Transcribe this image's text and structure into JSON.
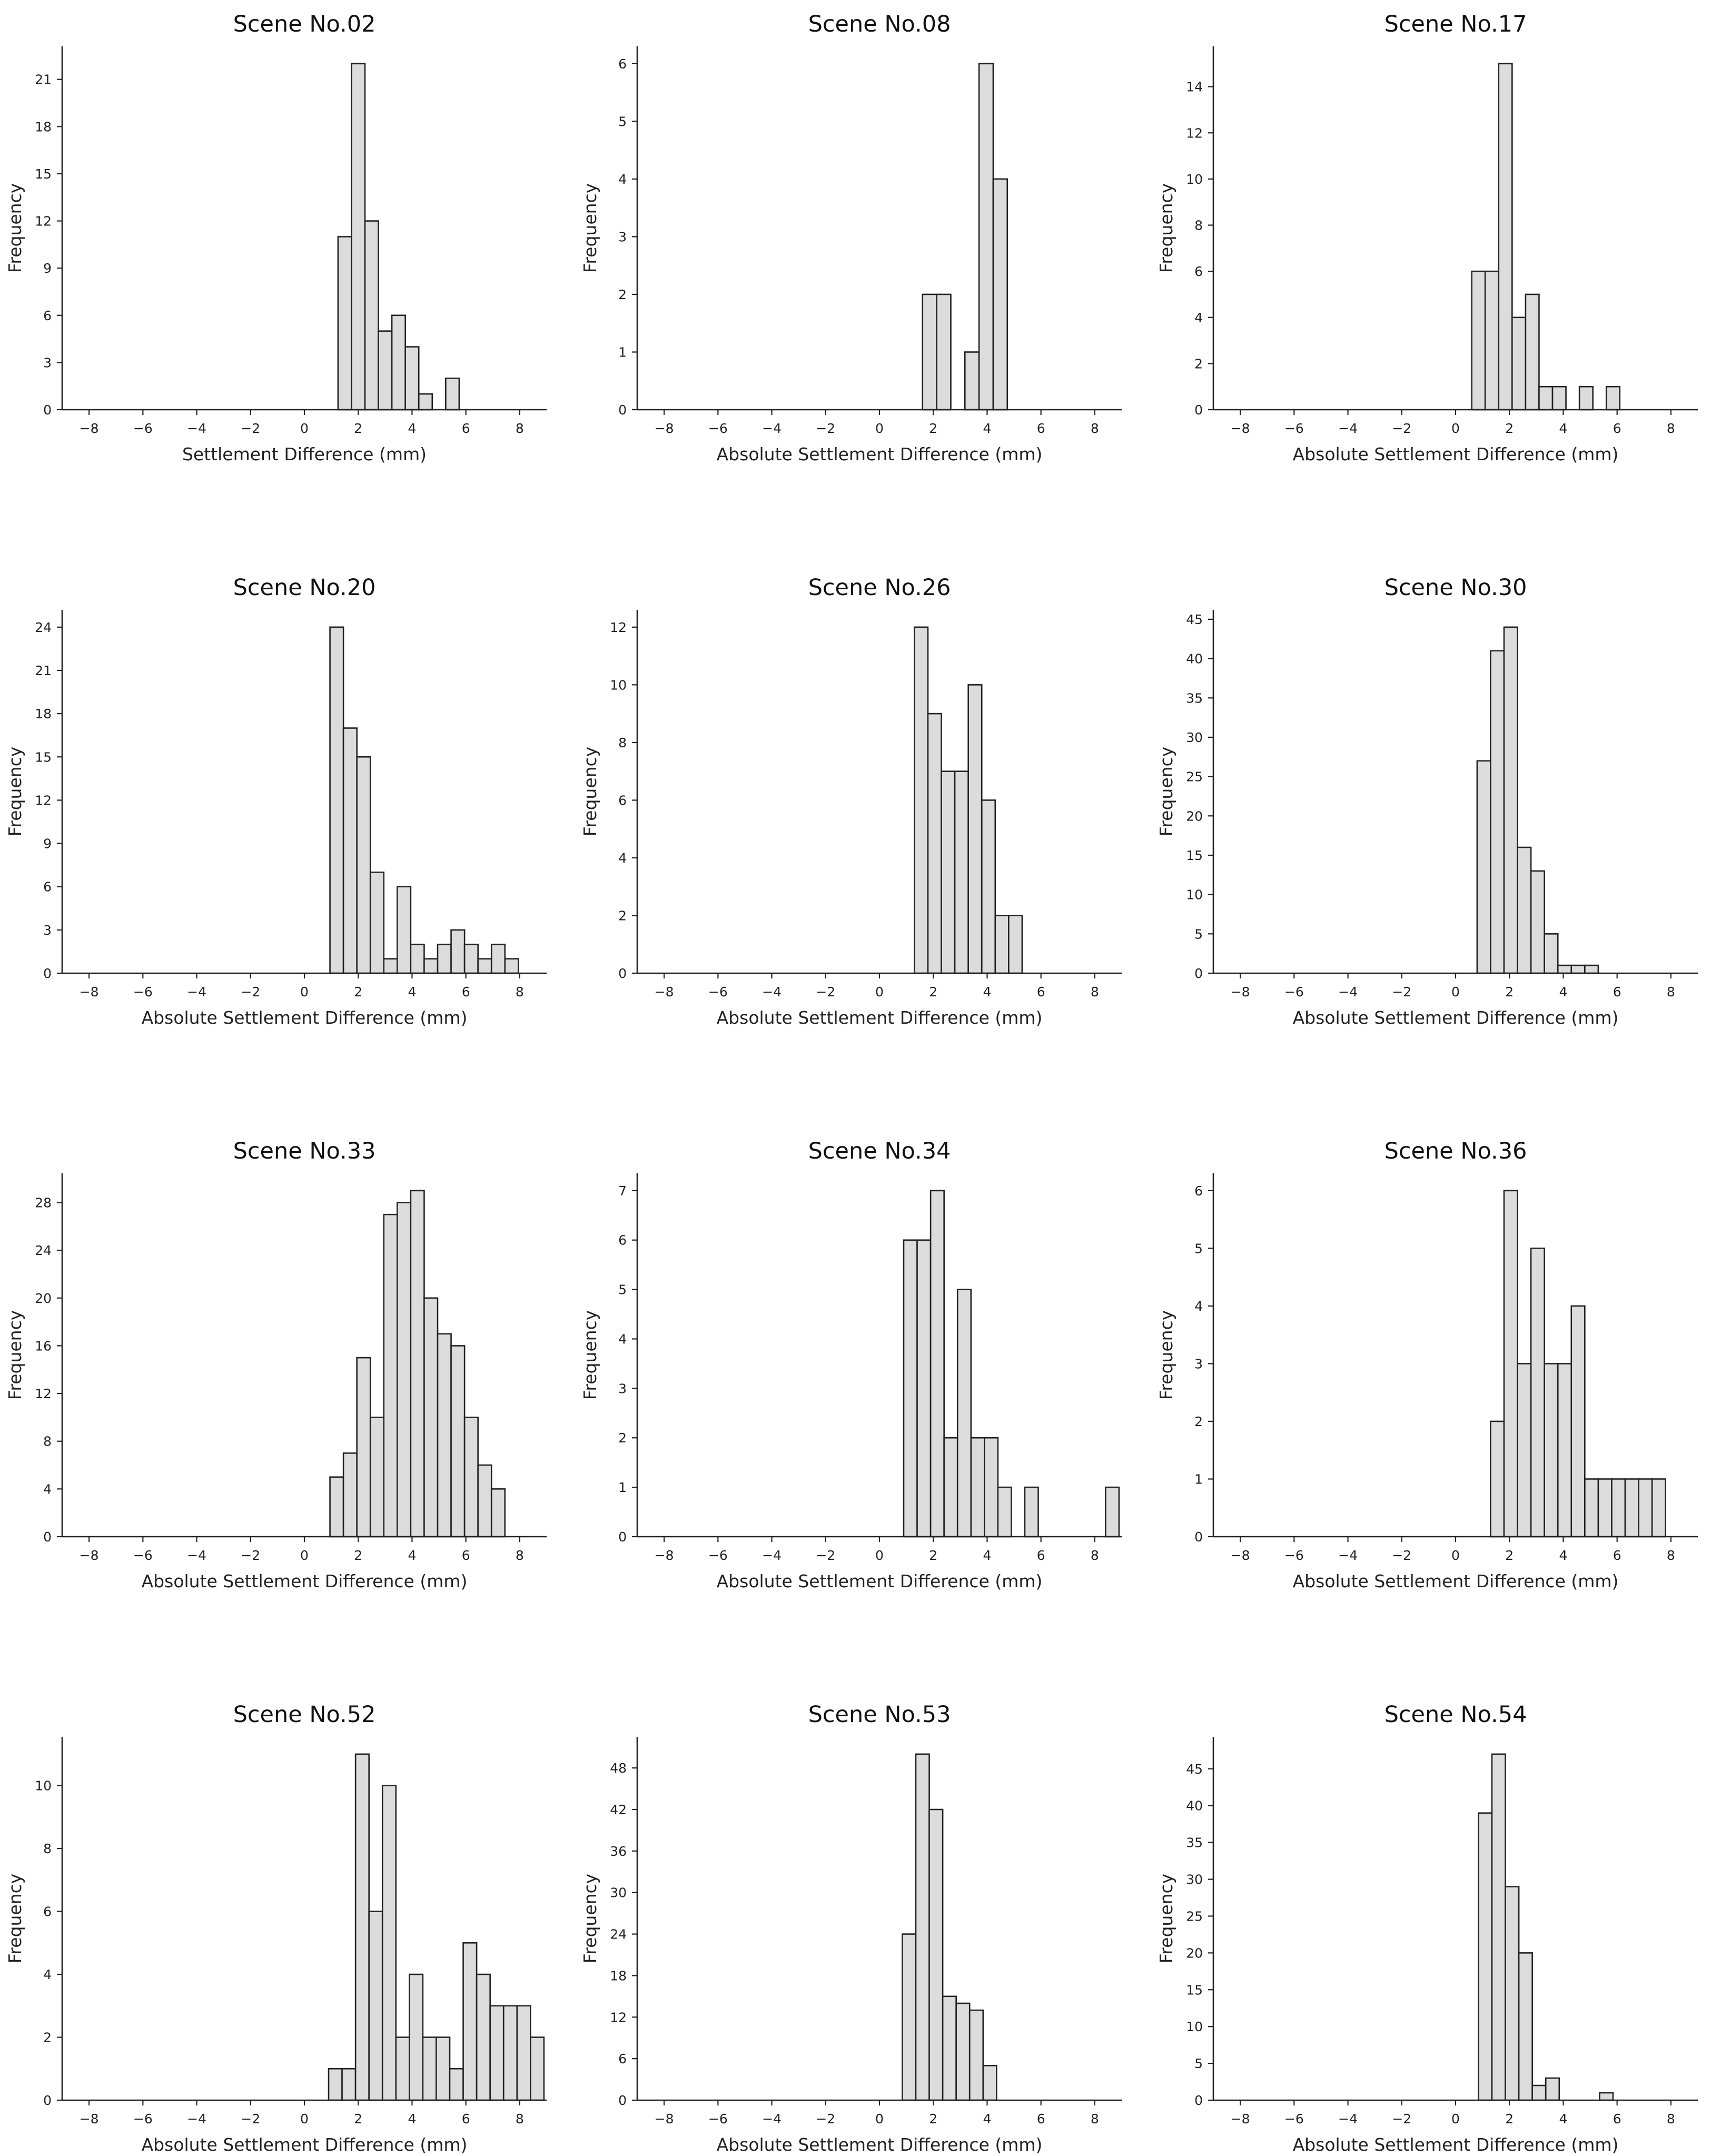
{
  "chart_data": [
    {
      "type": "bar",
      "title": "Scene No.02",
      "xlabel": "Settlement Difference (mm)",
      "ylabel": "Frequency",
      "xlim": [
        -9,
        9
      ],
      "ylim": [
        0,
        23.1
      ],
      "xticks": [
        -8,
        -6,
        -4,
        -2,
        0,
        2,
        4,
        6,
        8
      ],
      "yticks": [
        0,
        3,
        6,
        9,
        12,
        15,
        18,
        21
      ],
      "bin_start": 1.25,
      "bin_width": 0.5,
      "values": [
        11,
        22,
        12,
        5,
        6,
        4,
        1,
        0,
        2
      ],
      "grid": false
    },
    {
      "type": "bar",
      "title": "Scene No.08",
      "xlabel": "Absolute Settlement Difference (mm)",
      "ylabel": "Frequency",
      "xlim": [
        -9,
        9
      ],
      "ylim": [
        0,
        6.3
      ],
      "xticks": [
        -8,
        -6,
        -4,
        -2,
        0,
        2,
        4,
        6,
        8
      ],
      "yticks": [
        0,
        1,
        2,
        3,
        4,
        5,
        6
      ],
      "bin_start": 1.6,
      "bin_width": 0.525,
      "values": [
        2,
        2,
        0,
        1,
        6,
        4
      ],
      "grid": false
    },
    {
      "type": "bar",
      "title": "Scene No.17",
      "xlabel": "Absolute Settlement Difference (mm)",
      "ylabel": "Frequency",
      "xlim": [
        -9,
        9
      ],
      "ylim": [
        0,
        15.75
      ],
      "xticks": [
        -8,
        -6,
        -4,
        -2,
        0,
        2,
        4,
        6,
        8
      ],
      "yticks": [
        0,
        2,
        4,
        6,
        8,
        10,
        12,
        14
      ],
      "bin_start": 0.6,
      "bin_width": 0.5,
      "values": [
        6,
        6,
        15,
        4,
        5,
        1,
        1,
        0,
        1,
        0,
        1
      ],
      "grid": false
    },
    {
      "type": "bar",
      "title": "Scene No.20",
      "xlabel": "Absolute Settlement Difference (mm)",
      "ylabel": "Frequency",
      "xlim": [
        -9,
        9
      ],
      "ylim": [
        0,
        25.2
      ],
      "xticks": [
        -8,
        -6,
        -4,
        -2,
        0,
        2,
        4,
        6,
        8
      ],
      "yticks": [
        0,
        3,
        6,
        9,
        12,
        15,
        18,
        21,
        24
      ],
      "bin_start": 0.95,
      "bin_width": 0.5,
      "values": [
        24,
        17,
        15,
        7,
        1,
        6,
        2,
        1,
        2,
        3,
        2,
        1,
        2,
        1
      ],
      "grid": false
    },
    {
      "type": "bar",
      "title": "Scene No.26",
      "xlabel": "Absolute Settlement Difference (mm)",
      "ylabel": "Frequency",
      "xlim": [
        -9,
        9
      ],
      "ylim": [
        0,
        12.6
      ],
      "xticks": [
        -8,
        -6,
        -4,
        -2,
        0,
        2,
        4,
        6,
        8
      ],
      "yticks": [
        0,
        2,
        4,
        6,
        8,
        10,
        12
      ],
      "bin_start": 1.3,
      "bin_width": 0.5,
      "values": [
        12,
        9,
        7,
        7,
        10,
        6,
        2,
        2
      ],
      "grid": false
    },
    {
      "type": "bar",
      "title": "Scene No.30",
      "xlabel": "Absolute Settlement Difference (mm)",
      "ylabel": "Frequency",
      "xlim": [
        -9,
        9
      ],
      "ylim": [
        0,
        46.2
      ],
      "xticks": [
        -8,
        -6,
        -4,
        -2,
        0,
        2,
        4,
        6,
        8
      ],
      "yticks": [
        0,
        5,
        10,
        15,
        20,
        25,
        30,
        35,
        40,
        45
      ],
      "bin_start": 0.8,
      "bin_width": 0.5,
      "values": [
        27,
        41,
        44,
        16,
        13,
        5,
        1,
        1,
        1
      ],
      "grid": false
    },
    {
      "type": "bar",
      "title": "Scene No.33",
      "xlabel": "Absolute Settlement Difference (mm)",
      "ylabel": "Frequency",
      "xlim": [
        -9,
        9
      ],
      "ylim": [
        0,
        30.45
      ],
      "xticks": [
        -8,
        -6,
        -4,
        -2,
        0,
        2,
        4,
        6,
        8
      ],
      "yticks": [
        0,
        4,
        8,
        12,
        16,
        20,
        24,
        28
      ],
      "bin_start": 0.95,
      "bin_width": 0.5,
      "values": [
        5,
        7,
        15,
        10,
        27,
        28,
        29,
        20,
        17,
        16,
        10,
        6,
        4
      ],
      "grid": false
    },
    {
      "type": "bar",
      "title": "Scene No.34",
      "xlabel": "Absolute Settlement Difference (mm)",
      "ylabel": "Frequency",
      "xlim": [
        -9,
        9
      ],
      "ylim": [
        0,
        7.35
      ],
      "xticks": [
        -8,
        -6,
        -4,
        -2,
        0,
        2,
        4,
        6,
        8
      ],
      "yticks": [
        0,
        1,
        2,
        3,
        4,
        5,
        6,
        7
      ],
      "bin_start": 0.9,
      "bin_width": 0.5,
      "values": [
        6,
        6,
        7,
        2,
        5,
        2,
        2,
        1,
        0,
        1,
        0,
        0,
        0,
        0,
        0,
        1
      ],
      "grid": false
    },
    {
      "type": "bar",
      "title": "Scene No.36",
      "xlabel": "Absolute Settlement Difference (mm)",
      "ylabel": "Frequency",
      "xlim": [
        -9,
        9
      ],
      "ylim": [
        0,
        6.3
      ],
      "xticks": [
        -8,
        -6,
        -4,
        -2,
        0,
        2,
        4,
        6,
        8
      ],
      "yticks": [
        0,
        1,
        2,
        3,
        4,
        5,
        6
      ],
      "bin_start": 1.3,
      "bin_width": 0.5,
      "values": [
        2,
        6,
        3,
        5,
        3,
        3,
        4,
        1,
        1,
        1,
        1,
        1,
        1
      ],
      "grid": false
    },
    {
      "type": "bar",
      "title": "Scene No.52",
      "xlabel": "Absolute Settlement Difference (mm)",
      "ylabel": "Frequency",
      "xlim": [
        -9,
        9
      ],
      "ylim": [
        0,
        11.55
      ],
      "xticks": [
        -8,
        -6,
        -4,
        -2,
        0,
        2,
        4,
        6,
        8
      ],
      "yticks": [
        0,
        2,
        4,
        6,
        8,
        10
      ],
      "bin_start": 0.9,
      "bin_width": 0.5,
      "values": [
        1,
        1,
        11,
        6,
        10,
        2,
        4,
        2,
        2,
        1,
        5,
        4,
        3,
        3,
        3,
        2
      ],
      "grid": false
    },
    {
      "type": "bar",
      "title": "Scene No.53",
      "xlabel": "Absolute Settlement Difference (mm)",
      "ylabel": "Frequency",
      "xlim": [
        -9,
        9
      ],
      "ylim": [
        0,
        52.5
      ],
      "xticks": [
        -8,
        -6,
        -4,
        -2,
        0,
        2,
        4,
        6,
        8
      ],
      "yticks": [
        0,
        6,
        12,
        18,
        24,
        30,
        36,
        42,
        48
      ],
      "bin_start": 0.85,
      "bin_width": 0.5,
      "values": [
        24,
        50,
        42,
        15,
        14,
        13,
        5
      ],
      "grid": false
    },
    {
      "type": "bar",
      "title": "Scene No.54",
      "xlabel": "Absolute Settlement Difference (mm)",
      "ylabel": "Frequency",
      "xlim": [
        -9,
        9
      ],
      "ylim": [
        0,
        49.35
      ],
      "xticks": [
        -8,
        -6,
        -4,
        -2,
        0,
        2,
        4,
        6,
        8
      ],
      "yticks": [
        0,
        5,
        10,
        15,
        20,
        25,
        30,
        35,
        40,
        45
      ],
      "bin_start": 0.85,
      "bin_width": 0.5,
      "values": [
        39,
        47,
        29,
        20,
        2,
        3,
        0,
        0,
        0,
        1
      ],
      "grid": false
    }
  ]
}
